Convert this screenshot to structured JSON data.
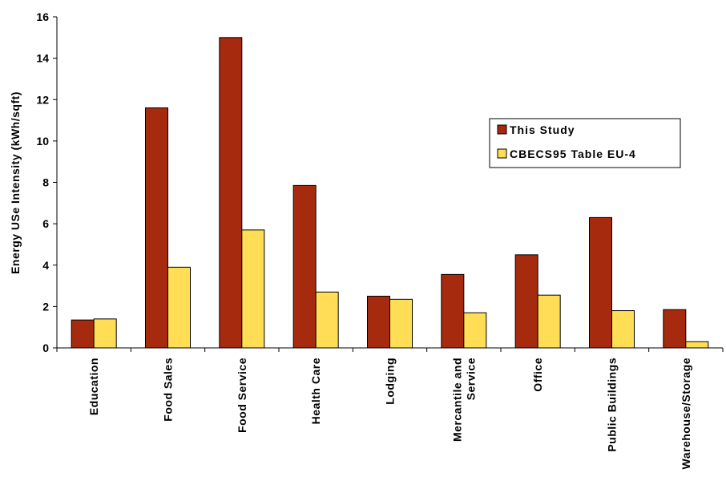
{
  "chart_data": {
    "type": "bar",
    "title": "",
    "xlabel": "",
    "ylabel": "Energy USe Intensity (kWh/sqft)",
    "ylim": [
      0,
      16
    ],
    "yticks": [
      "0",
      "2",
      "4",
      "6",
      "8",
      "10",
      "12",
      "14",
      "16"
    ],
    "grid": false,
    "legend_position": "right",
    "categories": [
      [
        "Education"
      ],
      [
        "Food Sales"
      ],
      [
        "Food Service"
      ],
      [
        "Health Care"
      ],
      [
        "Lodging"
      ],
      [
        "Mercantile and",
        "Service"
      ],
      [
        "Office"
      ],
      [
        "Public Buildings"
      ],
      [
        "Warehouse/Storage"
      ]
    ],
    "series": [
      {
        "name": "This Study",
        "color": "#A52A0E",
        "values": [
          1.35,
          11.6,
          15.0,
          7.85,
          2.5,
          3.55,
          4.5,
          6.3,
          1.85
        ]
      },
      {
        "name": "CBECS95 Table EU-4",
        "color": "#FFDD55",
        "values": [
          1.4,
          3.9,
          5.7,
          2.7,
          2.35,
          1.7,
          2.55,
          1.8,
          0.3
        ]
      }
    ]
  }
}
